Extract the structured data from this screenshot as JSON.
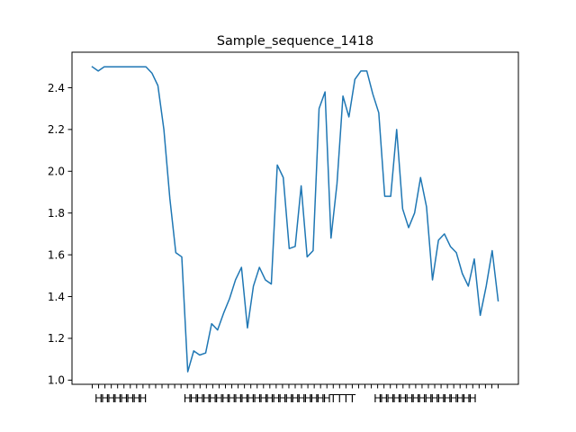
{
  "chart_data": {
    "type": "line",
    "title": "Sample_sequence_1418",
    "xlabel": "",
    "ylabel": "",
    "ylim": [
      0.98,
      2.57
    ],
    "yticks": [
      "1.0",
      "1.2",
      "1.4",
      "1.6",
      "1.8",
      "2.0",
      "2.2",
      "2.4"
    ],
    "yticks_values": [
      1.0,
      1.2,
      1.4,
      1.6,
      1.8,
      2.0,
      2.2,
      2.4
    ],
    "x_tick_labels": [
      "",
      "H",
      "H",
      "H",
      "H",
      "H",
      "H",
      "H",
      "H",
      "",
      "",
      "",
      "",
      "",
      "",
      "H",
      "H",
      "H",
      "H",
      "H",
      "H",
      "H",
      "H",
      "H",
      "H",
      "H",
      "H",
      "H",
      "H",
      "H",
      "H",
      "H",
      "H",
      "H",
      "H",
      "H",
      "H",
      "H",
      "T",
      "T",
      "T",
      "T",
      "",
      "",
      "",
      "H",
      "H",
      "H",
      "H",
      "H",
      "H",
      "H",
      "H",
      "H",
      "H",
      "H",
      "H",
      "H",
      "H",
      "H",
      "H",
      "",
      "",
      "",
      ""
    ],
    "grid": false,
    "legend": "none",
    "color": "#1f77b4",
    "series": [
      {
        "values": [
          2.5,
          2.48,
          2.5,
          2.5,
          2.5,
          2.5,
          2.5,
          2.5,
          2.5,
          2.5,
          2.47,
          2.41,
          2.2,
          1.87,
          1.61,
          1.59,
          1.04,
          1.14,
          1.12,
          1.13,
          1.27,
          1.24,
          1.32,
          1.39,
          1.48,
          1.54,
          1.25,
          1.45,
          1.54,
          1.48,
          1.46,
          2.03,
          1.97,
          1.63,
          1.64,
          1.93,
          1.59,
          1.62,
          2.3,
          2.38,
          1.68,
          1.94,
          2.36,
          2.26,
          2.44,
          2.48,
          2.48,
          2.37,
          2.28,
          1.88,
          1.88,
          2.2,
          1.82,
          1.73,
          1.8,
          1.97,
          1.83,
          1.48,
          1.67,
          1.7,
          1.64,
          1.61,
          1.51,
          1.45,
          1.58,
          1.31,
          1.45,
          1.62,
          1.38
        ]
      }
    ]
  }
}
